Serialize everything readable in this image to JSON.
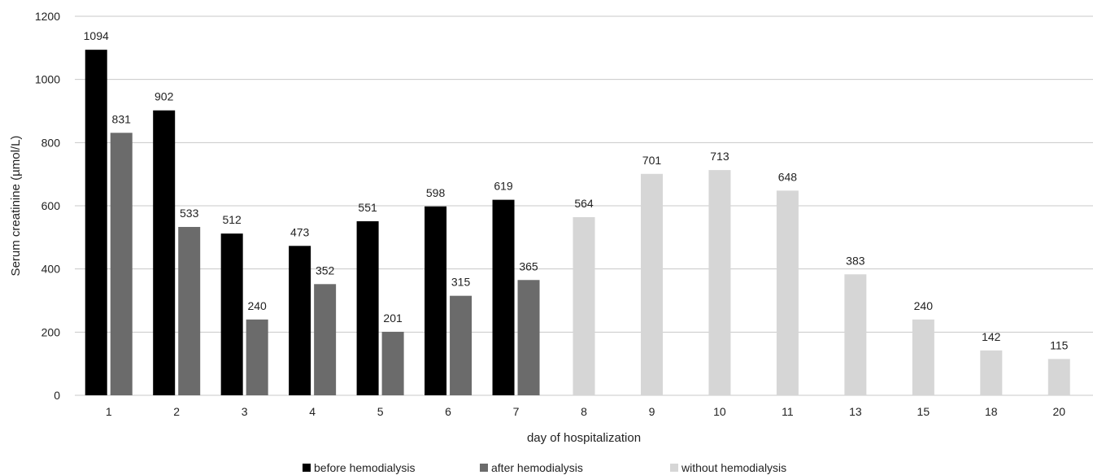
{
  "chart_data": {
    "type": "bar",
    "title": "",
    "xlabel": "day of hospitalization",
    "ylabel": "Serum creatinine (µmol/L)",
    "ylim": [
      0,
      1200
    ],
    "yticks": [
      0,
      200,
      400,
      600,
      800,
      1000,
      1200
    ],
    "grid": true,
    "legend_position": "bottom",
    "categories": [
      "1",
      "2",
      "3",
      "4",
      "5",
      "6",
      "7",
      "8",
      "9",
      "10",
      "11",
      "13",
      "15",
      "18",
      "20"
    ],
    "series": [
      {
        "name": "before hemodialysis",
        "color": "#000000",
        "values": [
          1094,
          902,
          512,
          473,
          551,
          598,
          619,
          null,
          null,
          null,
          null,
          null,
          null,
          null,
          null
        ]
      },
      {
        "name": "after hemodialysis",
        "color": "#6b6b6b",
        "values": [
          831,
          533,
          240,
          352,
          201,
          315,
          365,
          null,
          null,
          null,
          null,
          null,
          null,
          null,
          null
        ]
      },
      {
        "name": "without hemodialysis",
        "color": "#d6d6d6",
        "values": [
          null,
          null,
          null,
          null,
          null,
          null,
          null,
          564,
          701,
          713,
          648,
          383,
          240,
          142,
          115
        ]
      }
    ]
  }
}
